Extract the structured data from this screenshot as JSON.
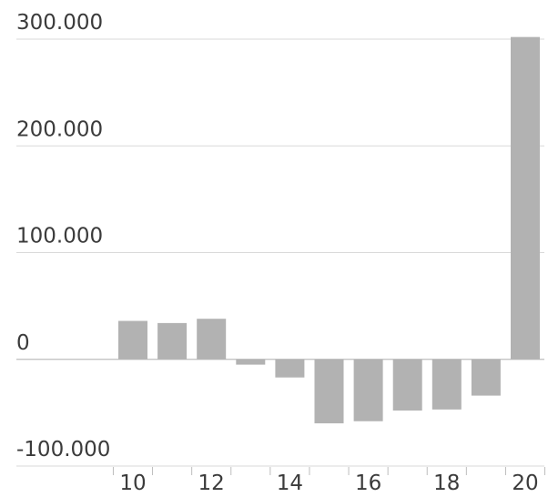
{
  "chart_data": {
    "type": "bar",
    "categories": [
      "10",
      "11",
      "12",
      "13",
      "14",
      "15",
      "16",
      "17",
      "18",
      "19",
      "20"
    ],
    "values": [
      36000,
      34000,
      38000,
      -5000,
      -17000,
      -60000,
      -58000,
      -48000,
      -47000,
      -34000,
      302000
    ],
    "ylim": [
      -100000,
      300000
    ],
    "y_ticks": [
      {
        "value": 300000,
        "label": "300.000"
      },
      {
        "value": 200000,
        "label": "200.000"
      },
      {
        "value": 100000,
        "label": "100.000"
      },
      {
        "value": 0,
        "label": "0"
      },
      {
        "value": -100000,
        "label": "-100.000"
      }
    ],
    "x_tick_labels": [
      "10",
      "12",
      "14",
      "16",
      "18",
      "20"
    ],
    "grid": true,
    "colors": {
      "bar": "#b2b2b2",
      "grid": "#d9d9d9",
      "text": "#3b3b3b"
    }
  }
}
